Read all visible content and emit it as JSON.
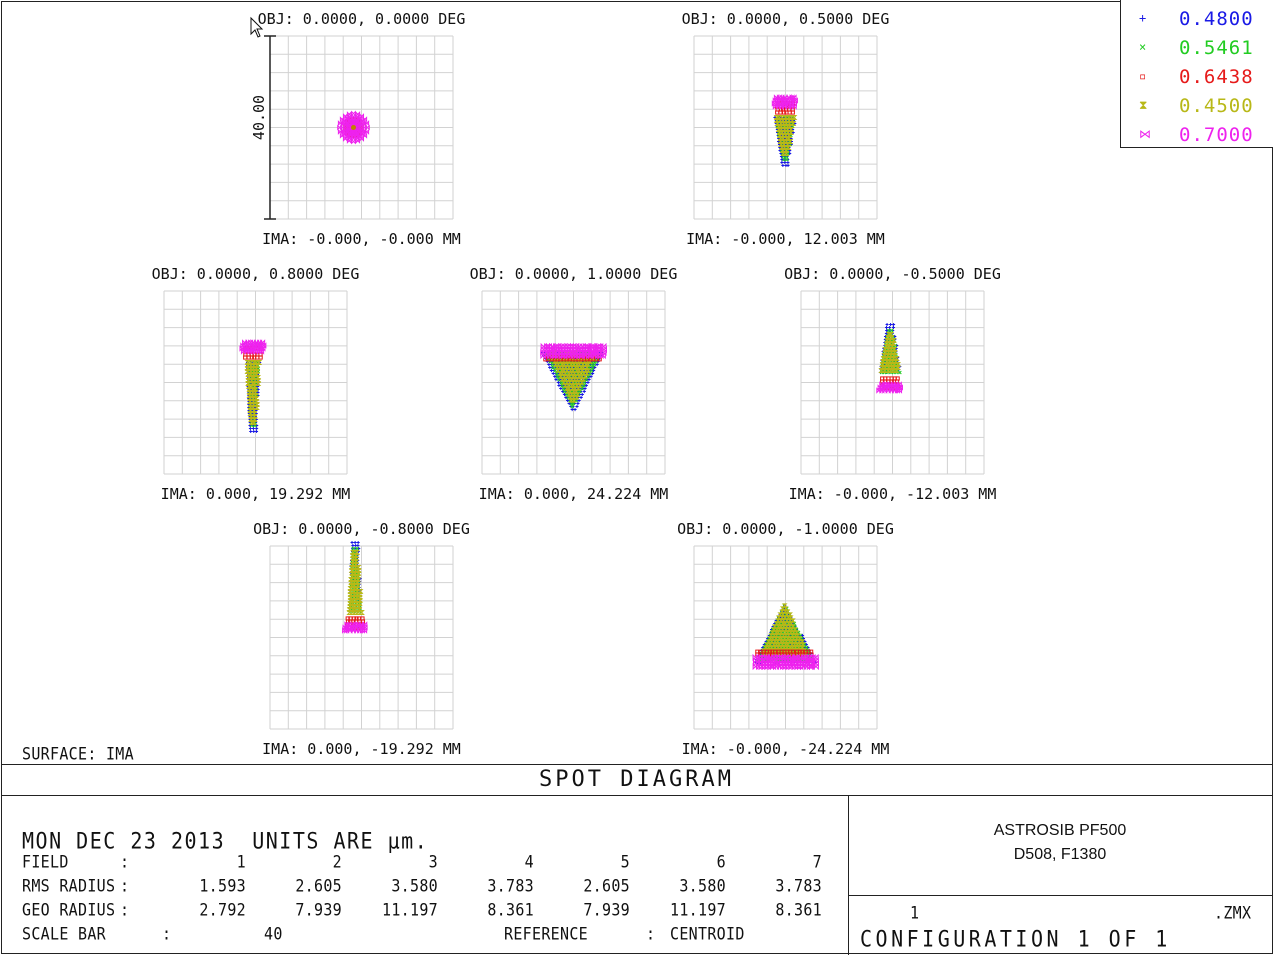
{
  "chart_data": {
    "type": "scatter",
    "title": "SPOT DIAGRAM",
    "surface_label": "SURFACE: IMA",
    "scale_bar_label": "40.00",
    "wavelengths": [
      {
        "value": "0.4800",
        "color": "#1a1ae6",
        "marker": "plus"
      },
      {
        "value": "0.5461",
        "color": "#22cc22",
        "marker": "x"
      },
      {
        "value": "0.6438",
        "color": "#e61a1a",
        "marker": "square"
      },
      {
        "value": "0.4500",
        "color": "#b8b818",
        "marker": "hourglass"
      },
      {
        "value": "0.7000",
        "color": "#ee22ee",
        "marker": "bowtie"
      }
    ],
    "fields": [
      {
        "obj": "OBJ: 0.0000, 0.0000 DEG",
        "ima": "IMA: -0.000, -0.000 MM",
        "shape": "dot"
      },
      {
        "obj": "OBJ: 0.0000, 0.5000 DEG",
        "ima": "IMA: -0.000, 12.003 MM",
        "shape": "keyhole"
      },
      {
        "obj": "OBJ: 0.0000, 0.8000 DEG",
        "ima": "IMA: 0.000, 19.292 MM",
        "shape": "long-keyhole"
      },
      {
        "obj": "OBJ: 0.0000, 1.0000 DEG",
        "ima": "IMA: 0.000, 24.224 MM",
        "shape": "fan-down"
      },
      {
        "obj": "OBJ: 0.0000, -0.5000 DEG",
        "ima": "IMA: -0.000, -12.003 MM",
        "shape": "keyhole-inv"
      },
      {
        "obj": "OBJ: 0.0000, -0.8000 DEG",
        "ima": "IMA: 0.000, -19.292 MM",
        "shape": "long-keyhole-inv"
      },
      {
        "obj": "OBJ: 0.0000, -1.0000 DEG",
        "ima": "IMA: -0.000, -24.224 MM",
        "shape": "fan-up"
      }
    ]
  },
  "footer": {
    "date_units": "MON DEC 23 2013  UNITS ARE µm.",
    "field_label": "FIELD",
    "rms_label": "RMS RADIUS",
    "geo_label": "GEO RADIUS",
    "scale_label": "SCALE BAR",
    "colon": ":",
    "field_numbers": [
      "1",
      "2",
      "3",
      "4",
      "5",
      "6",
      "7"
    ],
    "rms_values": [
      "1.593",
      "2.605",
      "3.580",
      "3.783",
      "2.605",
      "3.580",
      "3.783"
    ],
    "geo_values": [
      "2.792",
      "7.939",
      "11.197",
      "8.361",
      "7.939",
      "11.197",
      "8.361"
    ],
    "scale_value": "40",
    "reference_label": "REFERENCE",
    "reference_value": "CENTROID",
    "lens_name": "ASTROSIB PF500",
    "lens_spec": "D508, F1380",
    "file_number": "1",
    "file_ext": ".ZMX",
    "configuration": "CONFIGURATION 1 OF 1"
  }
}
